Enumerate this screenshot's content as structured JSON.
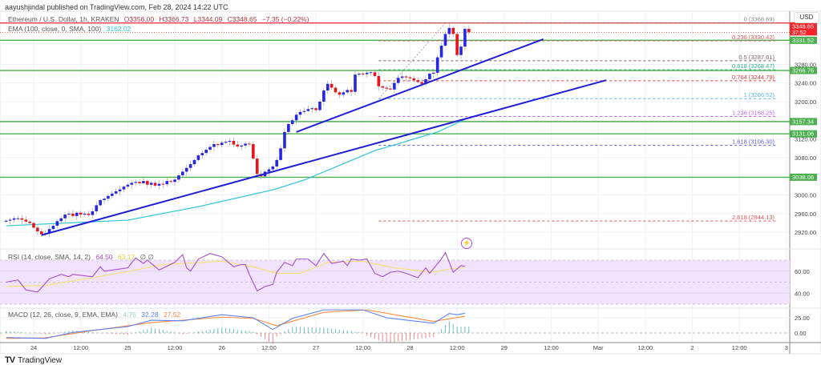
{
  "header": {
    "published": "aayushjindal published on TradingView.com, Feb 28, 2024 14:22 UTC",
    "symbol": "Ethereum / U.S. Dollar, 1h, KRAKEN",
    "open": "O3356.00",
    "high": "H3366.73",
    "low": "L3344.09",
    "close": "C3348.65",
    "change": "−7.35 (−0.22%)",
    "ema_label": "EMA (100, close, 0, SMA, 100)",
    "ema_value": "3162.02"
  },
  "currency": "USD",
  "footer": {
    "logo_mark": "TV",
    "brand": "TradingView"
  },
  "colors": {
    "up": "#2626e6",
    "down": "#e8141c",
    "ema": "#2bc4d8",
    "support": "#4caf50",
    "resistance": "#f23645",
    "trendline": "#1f1fd6",
    "rsi": "#a64fc9",
    "rsi_sma": "#f5e266",
    "rsi_band": "#f1e3fd",
    "macd": "#5b82f5",
    "signal": "#ff8a3d",
    "hist_up": "#26a69a",
    "hist_down": "#ef5350"
  },
  "chart_data": {
    "type": "candlestick",
    "interval": "1h",
    "first_candle": "2024-02-23T17:00",
    "closes": [
      2945,
      2947,
      2950,
      2950,
      2947,
      2943,
      2940,
      2930,
      2922,
      2916,
      2918,
      2927,
      2934,
      2944,
      2950,
      2958,
      2960,
      2955,
      2962,
      2958,
      2960,
      2957,
      2965,
      2978,
      2989,
      2992,
      2998,
      3003,
      3008,
      3012,
      3018,
      3022,
      3026,
      3028,
      3025,
      3030,
      3022,
      3026,
      3020,
      3024,
      3023,
      3030,
      3028,
      3033,
      3042,
      3050,
      3058,
      3066,
      3075,
      3085,
      3090,
      3097,
      3103,
      3109,
      3107,
      3112,
      3114,
      3116,
      3108,
      3104,
      3106,
      3110,
      3109,
      3078,
      3045,
      3040,
      3050,
      3055,
      3061,
      3075,
      3100,
      3135,
      3152,
      3160,
      3172,
      3178,
      3180,
      3184,
      3186,
      3182,
      3200,
      3224,
      3238,
      3230,
      3220,
      3215,
      3220,
      3225,
      3221,
      3258,
      3260,
      3259,
      3262,
      3263,
      3255,
      3233,
      3230,
      3228,
      3226,
      3240,
      3251,
      3254,
      3252,
      3250,
      3246,
      3242,
      3238,
      3248,
      3260,
      3262,
      3295,
      3320,
      3345,
      3358,
      3345,
      3300,
      3318,
      3356,
      3348.65
    ],
    "ema": [
      [
        "2024-02-23T17:00",
        2934
      ],
      [
        "2024-02-25T00:00",
        2946
      ],
      [
        "2024-02-25T18:00",
        2975
      ],
      [
        "2024-02-26T13:00",
        3011
      ],
      [
        "2024-02-26T21:00",
        3032
      ],
      [
        "2024-02-27T15:00",
        3095
      ],
      [
        "2024-02-28T07:00",
        3135
      ],
      [
        "2024-02-28T14:00",
        3162.02
      ]
    ],
    "price_axis": {
      "range": [
        2905,
        3400
      ],
      "ticks": [
        3280,
        3240,
        3200,
        3120,
        3080,
        3000,
        2960,
        2920
      ],
      "tick_labels": [
        "3280.00",
        "3240.00",
        "3200.00",
        "3120.00",
        "3080.00",
        "3000.00",
        "2960.00",
        "2920.00"
      ]
    },
    "time_axis": {
      "ticks": [
        "2024-02-24T00:00",
        "2024-02-24T12:00",
        "2024-02-25T00:00",
        "2024-02-25T12:00",
        "2024-02-26T00:00",
        "2024-02-26T12:00",
        "2024-02-27T00:00",
        "2024-02-27T12:00",
        "2024-02-28T00:00",
        "2024-02-28T12:00",
        "2024-02-29T00:00",
        "2024-02-29T12:00",
        "2024-03-01T00:00",
        "2024-03-01T12:00",
        "2024-03-02T00:00",
        "2024-03-02T12:00",
        "2024-03-03T00:00"
      ],
      "labels": [
        "24",
        "12:00",
        "25",
        "12:00",
        "26",
        "12:00",
        "27",
        "12:00",
        "28",
        "12:00",
        "29",
        "12:00",
        "Mar",
        "12:00",
        "2",
        "12:00",
        "3"
      ]
    },
    "horizontal_levels": [
      {
        "price": 3331.52,
        "label": "3331.52",
        "kind": "support"
      },
      {
        "price": 3266.76,
        "label": "3266.76",
        "kind": "support"
      },
      {
        "price": 3157.34,
        "label": "3157.34",
        "kind": "support"
      },
      {
        "price": 3131.06,
        "label": "3131.06",
        "kind": "support"
      },
      {
        "price": 3038.06,
        "label": "3038.06",
        "kind": "support"
      },
      {
        "price": 3368.69,
        "label": "",
        "kind": "resistance"
      }
    ],
    "last_price": {
      "price": 3348.65,
      "label": "3348.65",
      "countdown": "37:52"
    },
    "trendlines": [
      {
        "from": [
          "2024-02-24T02:00",
          2914
        ],
        "to": [
          "2024-03-01T02:00",
          3246
        ]
      },
      {
        "from": [
          "2024-02-26T19:00",
          3135
        ],
        "to": [
          "2024-02-29T10:00",
          3334
        ]
      }
    ],
    "fibonacci": {
      "start": "2024-02-27T16:00",
      "anchor_low": [
        "2024-02-27T16:00",
        3206.52
      ],
      "anchor_high": [
        "2024-02-28T09:00",
        3368.69
      ],
      "levels": [
        {
          "ratio": "0",
          "price": 3368.69,
          "text": "0 (3368.69)",
          "color": "#888888"
        },
        {
          "ratio": "0.236",
          "price": 3330.42,
          "text": "0.236 (3330.42)",
          "color": "#e0555a"
        },
        {
          "ratio": "0.5",
          "price": 3287.61,
          "text": "0.5 (3287.61)",
          "color": "#7a5c6e"
        },
        {
          "ratio": "0.618",
          "price": 3268.47,
          "text": "0.618 (3268.47)",
          "color": "#22b38a"
        },
        {
          "ratio": "0.764",
          "price": 3244.79,
          "text": "0.764 (3244.79)",
          "color": "#d93a3a"
        },
        {
          "ratio": "1",
          "price": 3206.52,
          "text": "1 (3206.52)",
          "color": "#5ab4e6"
        },
        {
          "ratio": "1.236",
          "price": 3168.25,
          "text": "1.236 (3168.25)",
          "color": "#b86ae0"
        },
        {
          "ratio": "1.618",
          "price": 3106.3,
          "text": "1.618 (3106.30)",
          "color": "#5a5ae0"
        },
        {
          "ratio": "2.618",
          "price": 2944.13,
          "text": "2.618 (2944.13)",
          "color": "#e05555"
        }
      ]
    },
    "rsi": {
      "label": "RSI (14, close, SMA, 14, 2)",
      "value": "64.50",
      "sma_value": "63.17",
      "extra": "∅ ∅",
      "range": [
        17,
        87
      ],
      "band": [
        30,
        70
      ],
      "ticks": [
        60,
        40
      ],
      "tick_labels": [
        "60.00",
        "40.00"
      ],
      "values": [
        [
          "2024-02-23T17:00",
          50
        ],
        [
          "2024-02-23T20:00",
          52
        ],
        [
          "2024-02-23T22:00",
          43
        ],
        [
          "2024-02-24T01:00",
          41
        ],
        [
          "2024-02-24T04:00",
          53
        ],
        [
          "2024-02-24T07:00",
          57
        ],
        [
          "2024-02-24T09:00",
          55
        ],
        [
          "2024-02-24T10:00",
          57
        ],
        [
          "2024-02-24T15:00",
          55
        ],
        [
          "2024-02-24T17:00",
          64
        ],
        [
          "2024-02-24T18:00",
          60
        ],
        [
          "2024-02-25T00:00",
          63
        ],
        [
          "2024-02-25T02:00",
          72
        ],
        [
          "2024-02-25T04:00",
          67
        ],
        [
          "2024-02-25T05:00",
          70
        ],
        [
          "2024-02-25T08:00",
          61
        ],
        [
          "2024-02-25T12:00",
          68
        ],
        [
          "2024-02-25T14:00",
          75
        ],
        [
          "2024-02-25T15:00",
          63
        ],
        [
          "2024-02-25T16:00",
          60
        ],
        [
          "2024-02-25T18:00",
          71
        ],
        [
          "2024-02-25T21:00",
          76
        ],
        [
          "2024-02-26T00:00",
          73
        ],
        [
          "2024-02-26T03:00",
          64
        ],
        [
          "2024-02-26T05:00",
          66
        ],
        [
          "2024-02-26T06:00",
          66
        ],
        [
          "2024-02-26T07:00",
          57
        ],
        [
          "2024-02-26T09:00",
          42
        ],
        [
          "2024-02-26T11:00",
          46
        ],
        [
          "2024-02-26T13:00",
          48
        ],
        [
          "2024-02-26T14:00",
          59
        ],
        [
          "2024-02-26T16:00",
          68
        ],
        [
          "2024-02-26T18:00",
          65
        ],
        [
          "2024-02-26T19:00",
          71
        ],
        [
          "2024-02-26T22:00",
          71
        ],
        [
          "2024-02-27T00:00",
          65
        ],
        [
          "2024-02-27T02:00",
          76
        ],
        [
          "2024-02-27T04:00",
          67
        ],
        [
          "2024-02-27T07:00",
          69
        ],
        [
          "2024-02-27T08:00",
          65
        ],
        [
          "2024-02-27T09:00",
          71
        ],
        [
          "2024-02-27T11:00",
          70
        ],
        [
          "2024-02-27T13:00",
          71
        ],
        [
          "2024-02-27T15:00",
          58
        ],
        [
          "2024-02-27T17:00",
          55
        ],
        [
          "2024-02-27T19:00",
          59
        ],
        [
          "2024-02-27T21:00",
          60
        ],
        [
          "2024-02-27T23:00",
          58
        ],
        [
          "2024-02-28T02:00",
          54
        ],
        [
          "2024-02-28T04:00",
          63
        ],
        [
          "2024-02-28T05:00",
          58
        ],
        [
          "2024-02-28T08:00",
          71
        ],
        [
          "2024-02-28T09:00",
          77
        ],
        [
          "2024-02-28T11:00",
          59
        ],
        [
          "2024-02-28T13:00",
          65
        ],
        [
          "2024-02-28T14:00",
          64.5
        ]
      ],
      "sma": [
        [
          "2024-02-23T17:00",
          46
        ],
        [
          "2024-02-24T03:00",
          47
        ],
        [
          "2024-02-24T23:00",
          59
        ],
        [
          "2024-02-25T09:00",
          66
        ],
        [
          "2024-02-26T00:00",
          69
        ],
        [
          "2024-02-26T08:00",
          64
        ],
        [
          "2024-02-26T14:00",
          58
        ],
        [
          "2024-02-26T20:00",
          58
        ],
        [
          "2024-02-27T03:00",
          68
        ],
        [
          "2024-02-27T12:00",
          69
        ],
        [
          "2024-02-27T20:00",
          63
        ],
        [
          "2024-02-28T06:00",
          59
        ],
        [
          "2024-02-28T10:00",
          62
        ],
        [
          "2024-02-28T14:00",
          63.17
        ]
      ]
    },
    "macd": {
      "label": "MACD (12, 26, close, 9, EMA, EMA)",
      "hist_value": "4.75",
      "macd_value": "32.28",
      "signal_value": "27.52",
      "range": [
        -16,
        50
      ],
      "ticks": [
        25,
        0
      ],
      "tick_labels": [
        "25.00",
        "0.00"
      ],
      "macd": [
        [
          "2024-02-23T17:00",
          -7.5
        ],
        [
          "2024-02-24T03:00",
          -9
        ],
        [
          "2024-02-24T10:00",
          1
        ],
        [
          "2024-02-24T17:00",
          5.7
        ],
        [
          "2024-02-25T00:00",
          10.5
        ],
        [
          "2024-02-25T06:00",
          21
        ],
        [
          "2024-02-25T14:00",
          20
        ],
        [
          "2024-02-26T00:00",
          30
        ],
        [
          "2024-02-26T08:00",
          25
        ],
        [
          "2024-02-26T13:00",
          5.7
        ],
        [
          "2024-02-26T18:00",
          24
        ],
        [
          "2024-02-27T02:00",
          38
        ],
        [
          "2024-02-27T12:00",
          38
        ],
        [
          "2024-02-27T18:00",
          25
        ],
        [
          "2024-02-28T06:00",
          16
        ],
        [
          "2024-02-28T10:00",
          32
        ],
        [
          "2024-02-28T12:00",
          30
        ],
        [
          "2024-02-28T14:00",
          32.28
        ]
      ],
      "signal": [
        [
          "2024-02-23T17:00",
          -9
        ],
        [
          "2024-02-24T03:00",
          -8
        ],
        [
          "2024-02-24T15:00",
          4
        ],
        [
          "2024-02-25T06:00",
          17
        ],
        [
          "2024-02-26T00:00",
          26
        ],
        [
          "2024-02-26T08:00",
          24
        ],
        [
          "2024-02-26T14:00",
          12
        ],
        [
          "2024-02-27T02:00",
          34
        ],
        [
          "2024-02-27T13:00",
          38
        ],
        [
          "2024-02-28T06:00",
          19
        ],
        [
          "2024-02-28T14:00",
          27.52
        ]
      ]
    }
  }
}
